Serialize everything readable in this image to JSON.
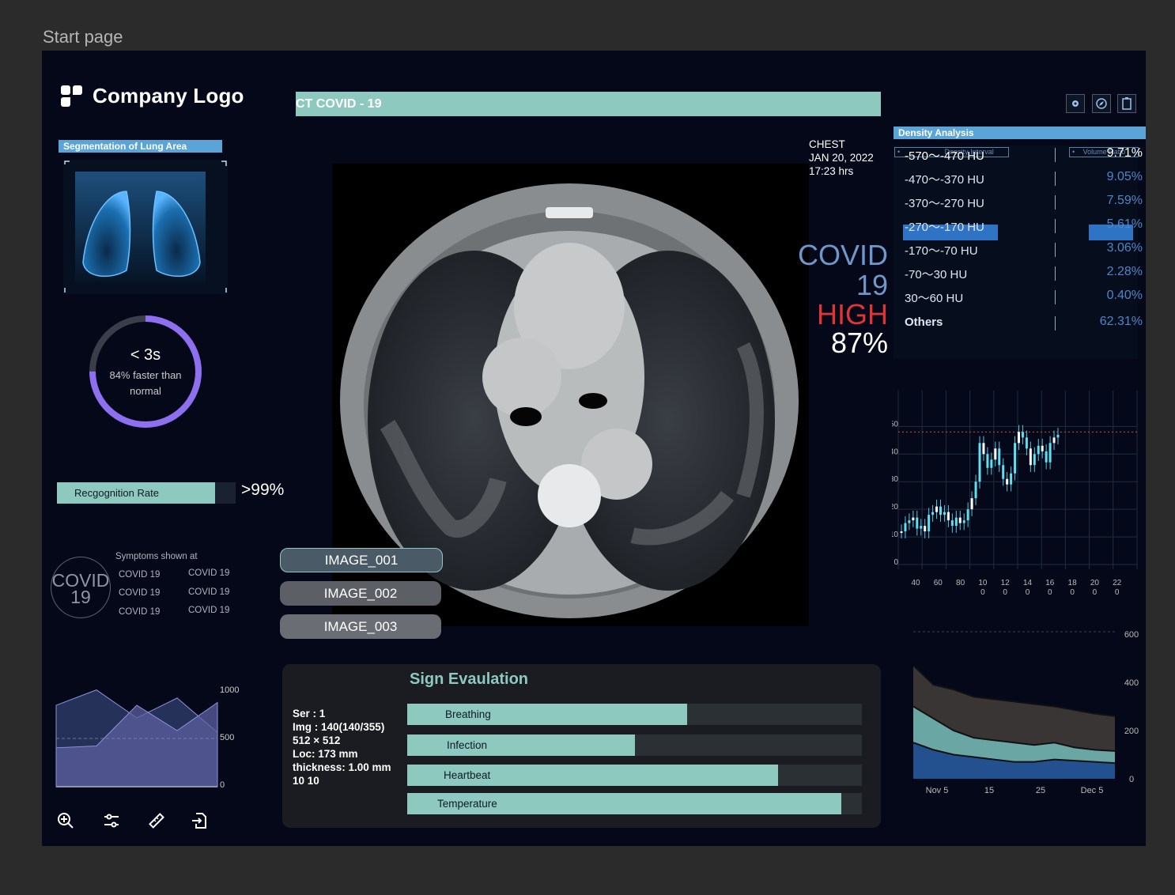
{
  "page_label": "Start page",
  "logo": {
    "text": "Company Logo"
  },
  "segmentation": {
    "label": "Segmentation of Lung Area"
  },
  "timer": {
    "value": "< 3s",
    "line1": "84% faster than",
    "line2": "normal",
    "progress": 0.75
  },
  "recognition": {
    "label": "Recgognition Rate",
    "value": ">99%",
    "fill": 0.84
  },
  "covid_badge": {
    "line1": "COVID",
    "line2": "19"
  },
  "symptoms": {
    "title": "Symptoms shown at",
    "col1": [
      "COVID 19",
      "COVID 19",
      "COVID 19"
    ],
    "col2": [
      "COVID 19",
      "COVID 19",
      "COVID 19"
    ]
  },
  "left_area_chart": {
    "type": "area",
    "y_ticks": [
      "1000",
      "500",
      "0"
    ],
    "series": [
      {
        "values": [
          900,
          1070,
          760,
          980,
          600
        ]
      },
      {
        "values": [
          430,
          450,
          900,
          620,
          930
        ]
      }
    ],
    "ylim": [
      0,
      1000
    ]
  },
  "tools": [
    "zoom-in-icon",
    "sliders-icon",
    "ruler-icon",
    "export-icon"
  ],
  "title_bar": {
    "text": "CT COVID - 19"
  },
  "scan_info": {
    "region": "CHEST",
    "date": "JAN 20, 2022",
    "time": "17:23 hrs"
  },
  "result": {
    "disease": "COVID 19",
    "level": "HIGH",
    "confidence": "87%"
  },
  "image_tabs": [
    "IMAGE_001",
    "IMAGE_002",
    "IMAGE_003"
  ],
  "sign_evaluation": {
    "title": "Sign Evaulation",
    "info": [
      "Ser : 1",
      "Img : 140(140/355)",
      "512 × 512",
      "Loc: 173 mm",
      "thickness: 1.00 mm",
      "10 10"
    ],
    "bars": [
      {
        "label": "Breathing",
        "fill": 0.615
      },
      {
        "label": "Infection",
        "fill": 0.5
      },
      {
        "label": "Heartbeat",
        "fill": 0.815
      },
      {
        "label": "Temperature",
        "fill": 0.955
      }
    ]
  },
  "density": {
    "title": "Density Analysis",
    "hdr_interval": "Density Interval",
    "hdr_ratio": "Volume Ratio",
    "rows": [
      {
        "label": "-570～-470 HU",
        "value": "9.71%"
      },
      {
        "label": "-470～-370 HU",
        "value": "9.05%"
      },
      {
        "label": "-370～-270 HU",
        "value": "7.59%"
      },
      {
        "label": "-270～-170 HU",
        "value": "5.61%"
      },
      {
        "label": "-170～-70 HU",
        "value": "3.06%"
      },
      {
        "label": "-70～30 HU",
        "value": "2.28%"
      },
      {
        "label": "30～60 HU",
        "value": "0.40%"
      },
      {
        "label": "Others",
        "value": "62.31%"
      }
    ]
  },
  "chart_data": [
    {
      "type": "candlestick",
      "y_ticks": [
        "50",
        "40",
        "30",
        "20",
        "10",
        "0"
      ],
      "x_ticks": [
        [
          "40",
          ""
        ],
        [
          "60",
          ""
        ],
        [
          "80",
          ""
        ],
        [
          "10",
          "0"
        ],
        [
          "12",
          "0"
        ],
        [
          "14",
          "0"
        ],
        [
          "16",
          "0"
        ],
        [
          "18",
          "0"
        ],
        [
          "20",
          "0"
        ],
        [
          "22",
          "0"
        ]
      ],
      "ylim": [
        0,
        55
      ],
      "reference_line": 48,
      "values": [
        12,
        15,
        16,
        17,
        13,
        14,
        12,
        18,
        19,
        21,
        18,
        19,
        16,
        14,
        17,
        15,
        16,
        20,
        24,
        30,
        44,
        40,
        35,
        38,
        42,
        36,
        31,
        29,
        33,
        44,
        48,
        46,
        42,
        36,
        40,
        43,
        41,
        37,
        44,
        46,
        47
      ]
    },
    {
      "type": "area",
      "x_ticks": [
        "Nov 5",
        "15",
        "25",
        "Dec 5"
      ],
      "y_ticks": [
        "600",
        "400",
        "200",
        "0"
      ],
      "ylim": [
        0,
        600
      ],
      "series": [
        {
          "values": [
            470,
            390,
            370,
            340,
            330,
            320,
            310,
            300,
            285,
            270,
            260
          ]
        },
        {
          "values": [
            300,
            250,
            200,
            170,
            160,
            150,
            140,
            150,
            130,
            120,
            115
          ]
        },
        {
          "values": [
            150,
            120,
            100,
            90,
            80,
            70,
            70,
            80,
            75,
            70,
            65
          ]
        }
      ]
    }
  ],
  "colors": {
    "accent": "#8ec9c0",
    "danger": "#e03535",
    "blue": "#5aa4d8",
    "ring": "#8d6ff0"
  }
}
